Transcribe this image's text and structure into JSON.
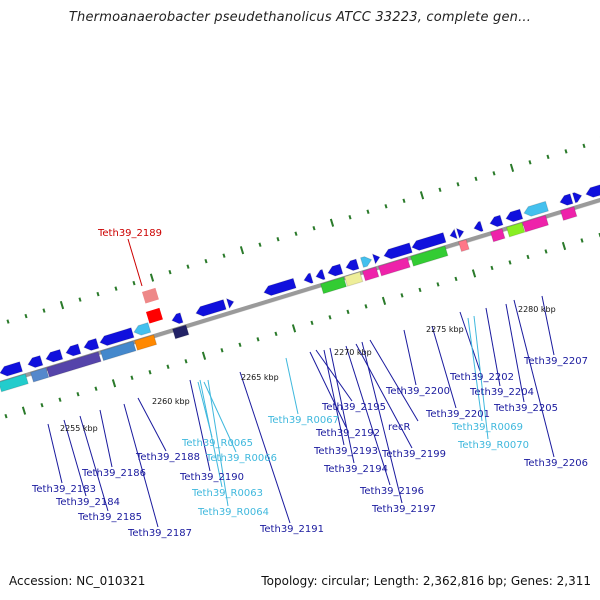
{
  "header": {
    "title": "Thermoanaerobacter pseudethanolicus ATCC 33223, complete gen..."
  },
  "footer": {
    "accession": "Accession: NC_010321",
    "topology": "Topology: circular; Length: 2,362,816 bp; Genes: 2,311"
  },
  "colors": {
    "gene_label": "#1a1a9e",
    "rna_label": "#3fb8dd",
    "highlight_label": "#cc0000",
    "ruler_dot": "#2a7a2a",
    "backbone": "#9a9a9a"
  },
  "scale_ticks": [
    "2255 kbp",
    "2260 kbp",
    "2265 kbp",
    "2270 kbp",
    "2275 kbp",
    "2280 kbp"
  ],
  "gene_labels": [
    {
      "id": "Teth39_2189",
      "kind": "highlight"
    },
    {
      "id": "Teth39_2183",
      "kind": "gene"
    },
    {
      "id": "Teth39_2184",
      "kind": "gene"
    },
    {
      "id": "Teth39_2185",
      "kind": "gene"
    },
    {
      "id": "Teth39_2186",
      "kind": "gene"
    },
    {
      "id": "Teth39_2187",
      "kind": "gene"
    },
    {
      "id": "Teth39_2188",
      "kind": "gene"
    },
    {
      "id": "Teth39_R0065",
      "kind": "rna"
    },
    {
      "id": "Teth39_R0066",
      "kind": "rna"
    },
    {
      "id": "Teth39_2190",
      "kind": "gene"
    },
    {
      "id": "Teth39_R0063",
      "kind": "rna"
    },
    {
      "id": "Teth39_R0064",
      "kind": "rna"
    },
    {
      "id": "Teth39_2191",
      "kind": "gene"
    },
    {
      "id": "Teth39_R0067",
      "kind": "rna"
    },
    {
      "id": "Teth39_2195",
      "kind": "gene"
    },
    {
      "id": "Teth39_2192",
      "kind": "gene"
    },
    {
      "id": "Teth39_2193",
      "kind": "gene"
    },
    {
      "id": "Teth39_2194",
      "kind": "gene"
    },
    {
      "id": "recR",
      "kind": "gene"
    },
    {
      "id": "Teth39_2199",
      "kind": "gene"
    },
    {
      "id": "Teth39_2196",
      "kind": "gene"
    },
    {
      "id": "Teth39_2197",
      "kind": "gene"
    },
    {
      "id": "Teth39_2200",
      "kind": "gene"
    },
    {
      "id": "Teth39_2201",
      "kind": "gene"
    },
    {
      "id": "Teth39_2202",
      "kind": "gene"
    },
    {
      "id": "Teth39_2204",
      "kind": "gene"
    },
    {
      "id": "Teth39_2205",
      "kind": "gene"
    },
    {
      "id": "Teth39_R0069",
      "kind": "rna"
    },
    {
      "id": "Teth39_R0070",
      "kind": "rna"
    },
    {
      "id": "Teth39_2206",
      "kind": "gene"
    },
    {
      "id": "Teth39_2207",
      "kind": "gene"
    }
  ]
}
